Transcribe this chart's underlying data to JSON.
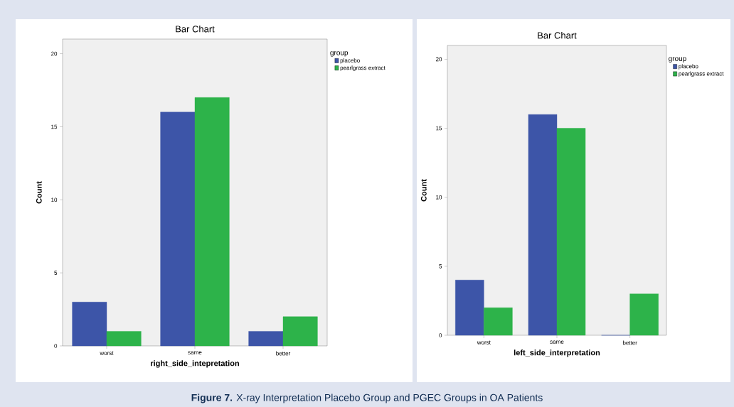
{
  "chart_data": [
    {
      "type": "bar",
      "title": "Bar Chart",
      "xlabel": "right_side_intepretation",
      "ylabel": "Count",
      "legend_title": "group",
      "legend": "top right",
      "categories": [
        "worst",
        "same",
        "better"
      ],
      "series": [
        {
          "name": "placebo",
          "color": "#3d55a8",
          "values": [
            3,
            16,
            1
          ]
        },
        {
          "name": "pearlgrass extract",
          "color": "#2db34a",
          "values": [
            1,
            17,
            2
          ]
        }
      ],
      "ylim": [
        0,
        21
      ],
      "yticks": [
        0,
        5,
        10,
        15,
        20
      ],
      "annotations": [
        "**Figure 7.** X-ray Interpretation Placebo Group and PGEC Groups in OA Patients"
      ]
    },
    {
      "type": "bar",
      "title": "Bar Chart",
      "xlabel": "left_side_interpretation",
      "ylabel": "Count",
      "legend_title": "group",
      "legend": "top right",
      "categories": [
        "worst",
        "same",
        "better"
      ],
      "series": [
        {
          "name": "placebo",
          "color": "#3d55a8",
          "values": [
            4,
            16,
            0
          ]
        },
        {
          "name": "pearlgrass extract",
          "color": "#2db34a",
          "values": [
            2,
            15,
            3
          ]
        }
      ],
      "ylim": [
        0,
        21
      ],
      "yticks": [
        0,
        5,
        10,
        15,
        20
      ]
    }
  ]
}
